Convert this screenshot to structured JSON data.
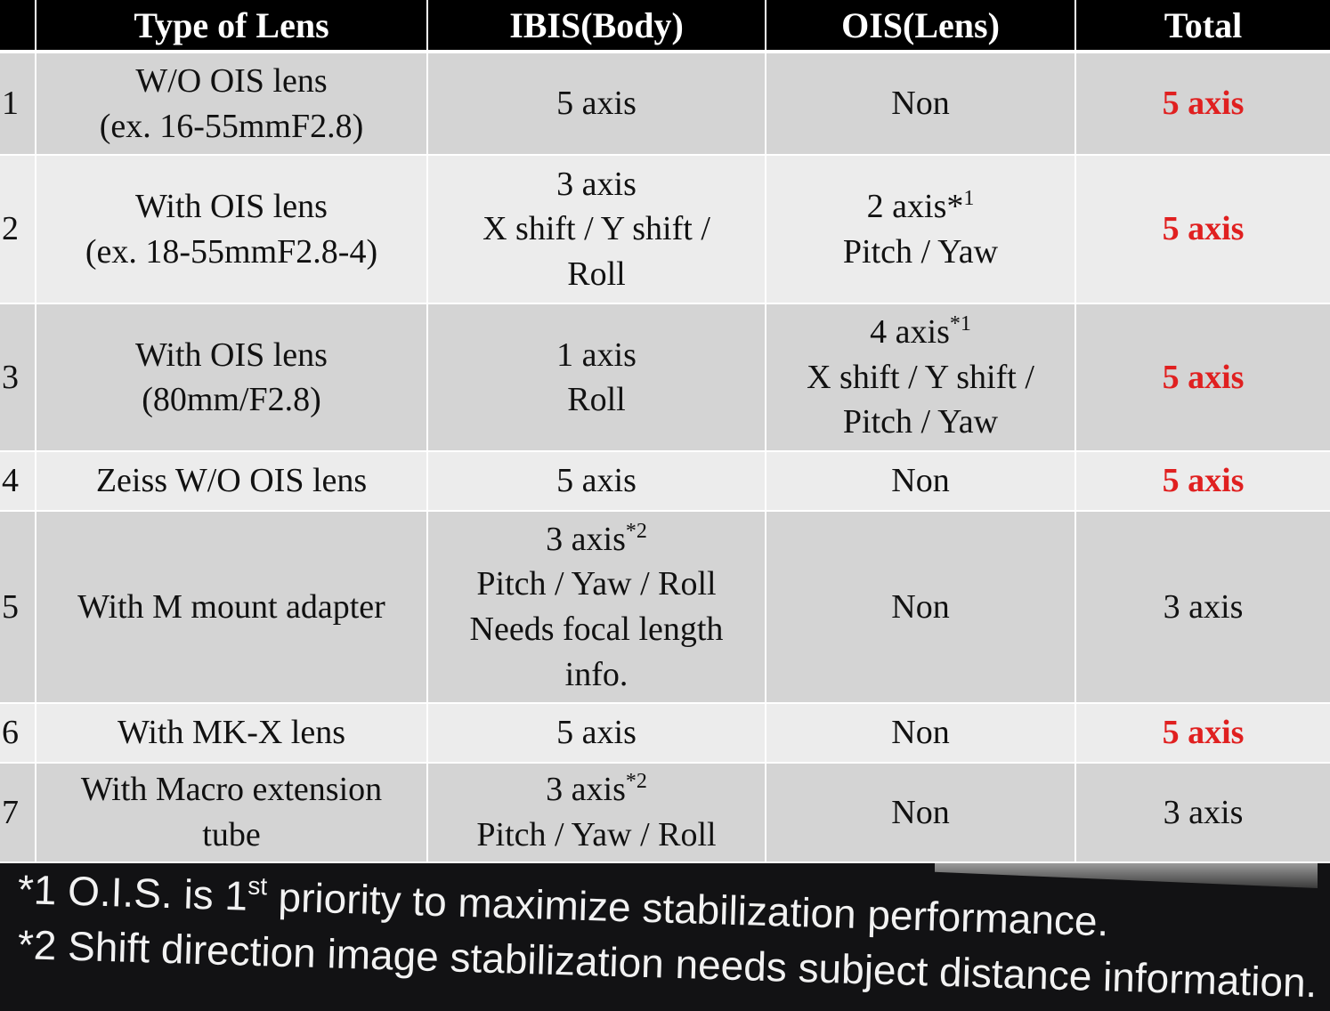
{
  "table": {
    "headers": [
      "",
      "Type of Lens",
      "IBIS(Body)",
      "OIS(Lens)",
      "Total"
    ],
    "rows": [
      {
        "num": "1",
        "type": [
          "W/O OIS lens",
          "(ex. 16-55mmF2.8)"
        ],
        "ibis": {
          "lines": [
            "5 axis"
          ]
        },
        "ois": {
          "lines": [
            "Non"
          ]
        },
        "total": "5 axis",
        "total_highlight": true
      },
      {
        "num": "2",
        "type": [
          "With OIS lens",
          "(ex.  18-55mmF2.8-4)"
        ],
        "ibis": {
          "lines": [
            "3 axis",
            "X shift / Y shift /",
            "Roll"
          ]
        },
        "ois": {
          "first": "2 axis*",
          "first_sup": "1",
          "lines": [
            "Pitch / Yaw"
          ]
        },
        "total": "5 axis",
        "total_highlight": true
      },
      {
        "num": "3",
        "type": [
          "With OIS lens",
          "(80mm/F2.8)"
        ],
        "ibis": {
          "lines": [
            "1 axis",
            "Roll"
          ]
        },
        "ois": {
          "first": "4 axis",
          "first_sup": "*1",
          "lines": [
            "X shift / Y shift /",
            "Pitch / Yaw"
          ]
        },
        "total": "5 axis",
        "total_highlight": true
      },
      {
        "num": "4",
        "type": [
          "Zeiss W/O OIS lens"
        ],
        "ibis": {
          "lines": [
            "5 axis"
          ]
        },
        "ois": {
          "lines": [
            "Non"
          ]
        },
        "total": "5 axis",
        "total_highlight": true
      },
      {
        "num": "5",
        "type": [
          "With M mount adapter"
        ],
        "ibis": {
          "first": "3 axis",
          "first_sup": "*2",
          "lines": [
            "Pitch / Yaw / Roll",
            "Needs focal length",
            "info."
          ]
        },
        "ois": {
          "lines": [
            "Non"
          ]
        },
        "total": "3 axis",
        "total_highlight": false
      },
      {
        "num": "6",
        "type": [
          "With MK-X lens"
        ],
        "ibis": {
          "lines": [
            "5 axis"
          ]
        },
        "ois": {
          "lines": [
            "Non"
          ]
        },
        "total": "5 axis",
        "total_highlight": true
      },
      {
        "num": "7",
        "type": [
          "With Macro extension",
          "tube"
        ],
        "ibis": {
          "first": "3 axis",
          "first_sup": "*2",
          "lines": [
            "Pitch / Yaw / Roll"
          ]
        },
        "ois": {
          "lines": [
            "Non"
          ]
        },
        "total": "3 axis",
        "total_highlight": false
      }
    ]
  },
  "footnotes": {
    "note1": {
      "prefix": "*1 O.I.S. is 1",
      "sup": "st",
      "suffix": " priority to maximize stabilization performance."
    },
    "note2": {
      "text": "*2 Shift direction image stabilization needs subject distance information."
    }
  },
  "colors": {
    "highlight": "#e02020",
    "header_bg": "#000000",
    "row_dark": "#d4d4d4",
    "row_light": "#ececec",
    "footer_bg": "#121214"
  }
}
